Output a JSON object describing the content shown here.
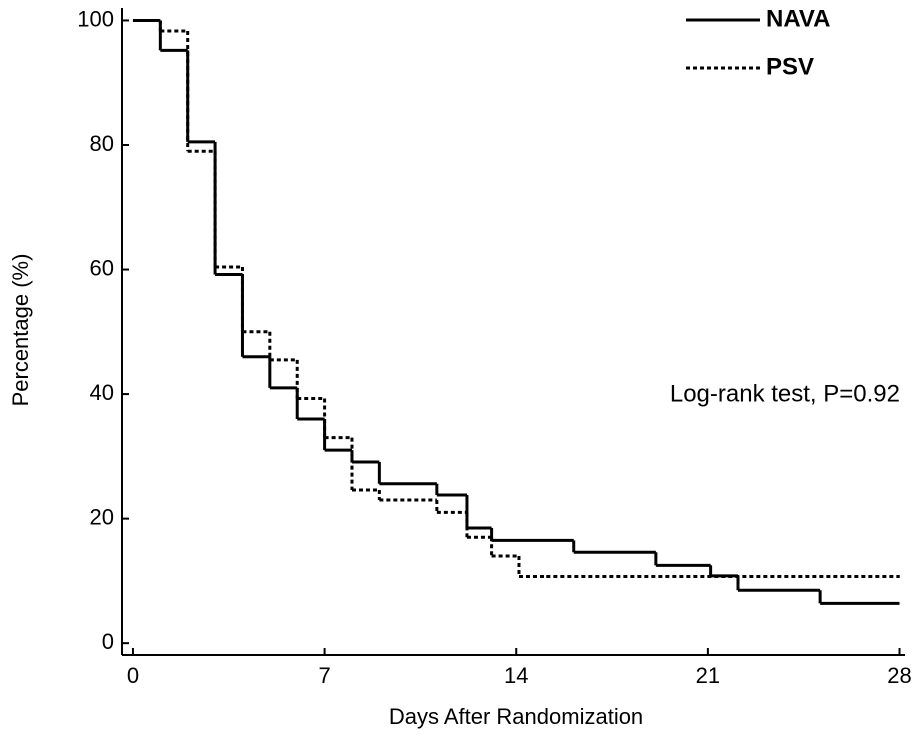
{
  "chart_data": {
    "type": "step",
    "xlabel": "Days After Randomization",
    "ylabel": "Percentage (%)",
    "annotation": "Log-rank test, P=0.92",
    "xlim": [
      -0.4,
      28.2
    ],
    "ylim": [
      -1.9,
      102
    ],
    "xticks": [
      0,
      7,
      14,
      21,
      28
    ],
    "yticks": [
      0,
      20,
      40,
      60,
      80,
      100
    ],
    "legend": "upper right",
    "series": [
      {
        "name": "NAVA",
        "color": "#000000",
        "style": "solid",
        "x": [
          0,
          1,
          2,
          3,
          4,
          5,
          6,
          7,
          8,
          9,
          11.1,
          12.2,
          13.1,
          16.1,
          19.1,
          21.1,
          22.1,
          25.1,
          28
        ],
        "values": [
          100,
          95.2,
          80.5,
          59.2,
          46,
          41,
          36,
          31,
          29.1,
          25.6,
          23.8,
          18.5,
          16.5,
          14.6,
          12.5,
          10.8,
          8.5,
          6.4,
          6.4
        ]
      },
      {
        "name": "PSV",
        "color": "#000000",
        "style": "dotted",
        "x": [
          0,
          1,
          2,
          3,
          4,
          5,
          6,
          7,
          8,
          9,
          11.1,
          12.2,
          13.1,
          14.1,
          15.1,
          28
        ],
        "values": [
          100,
          98.3,
          79,
          60.4,
          50,
          45.5,
          39.3,
          33,
          24.6,
          23,
          21,
          17,
          14,
          10.7,
          10.7,
          10.7
        ]
      }
    ]
  }
}
